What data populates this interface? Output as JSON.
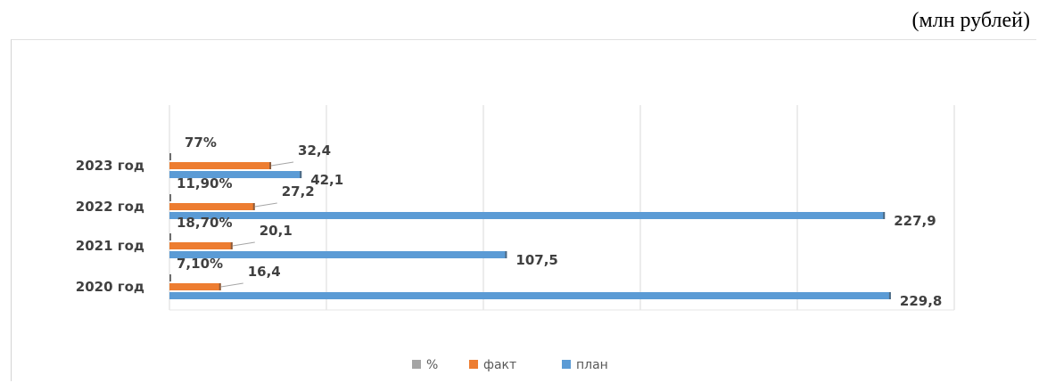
{
  "unit_label": "(млн рублей)",
  "chart_data": {
    "type": "bar",
    "orientation": "horizontal",
    "categories": [
      "2020 год",
      "2021 год",
      "2022 год",
      "2023 год"
    ],
    "series": [
      {
        "name": "%",
        "values": [
          7.1,
          18.7,
          11.9,
          77
        ],
        "labels": [
          "7,10%",
          "18,70%",
          "11,90%",
          "77%"
        ],
        "color": "#a5a5a5"
      },
      {
        "name": "факт",
        "values": [
          16.4,
          20.1,
          27.2,
          32.4
        ],
        "labels": [
          "16,4",
          "20,1",
          "27,2",
          "32,4"
        ],
        "color": "#ed7d31"
      },
      {
        "name": "план",
        "values": [
          229.8,
          107.5,
          227.9,
          42.1
        ],
        "labels": [
          "229,8",
          "107,5",
          "227,9",
          "42,1"
        ],
        "color": "#5b9bd5"
      }
    ],
    "xlim": [
      0,
      250
    ],
    "grid": true,
    "legend_position": "bottom"
  }
}
